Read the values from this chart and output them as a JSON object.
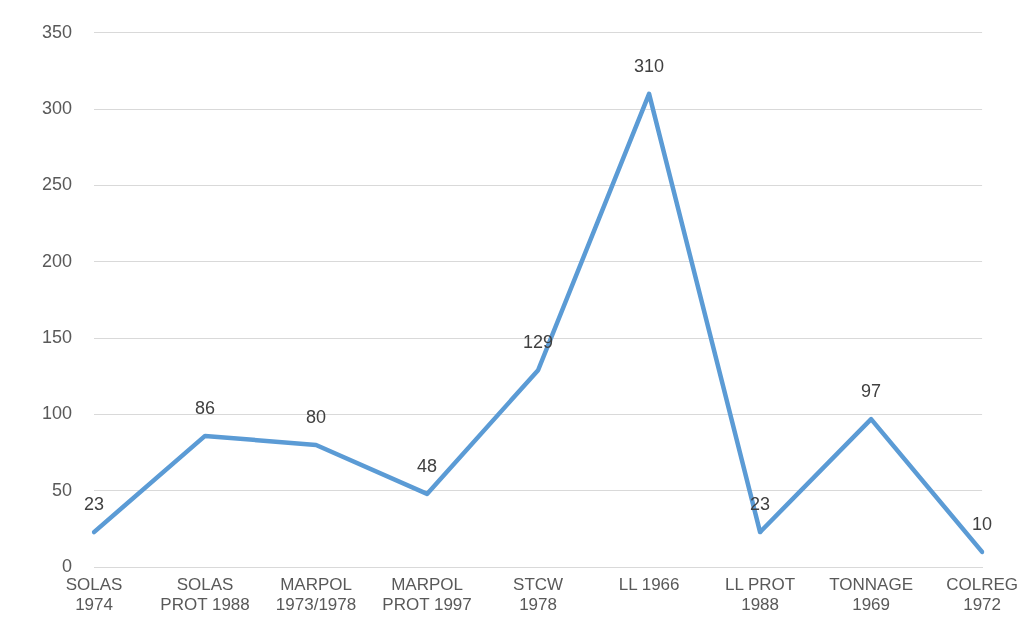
{
  "chart_data": {
    "type": "line",
    "categories": [
      "SOLAS 1974",
      "SOLAS PROT 1988",
      "MARPOL 1973/1978",
      "MARPOL PROT 1997",
      "STCW 1978",
      "LL 1966",
      "LL PROT 1988",
      "TONNAGE 1969",
      "COLREG 1972"
    ],
    "series": [
      {
        "color": "#5b9bd5",
        "values": [
          23,
          86,
          80,
          48,
          129,
          310,
          23,
          97,
          10
        ]
      }
    ],
    "ylim": [
      0,
      350
    ],
    "yticks": [
      0,
      50,
      100,
      150,
      200,
      250,
      300,
      350
    ],
    "grid": "y",
    "legend": false,
    "marker": "none",
    "line_style": "solid",
    "data_labels": true
  }
}
